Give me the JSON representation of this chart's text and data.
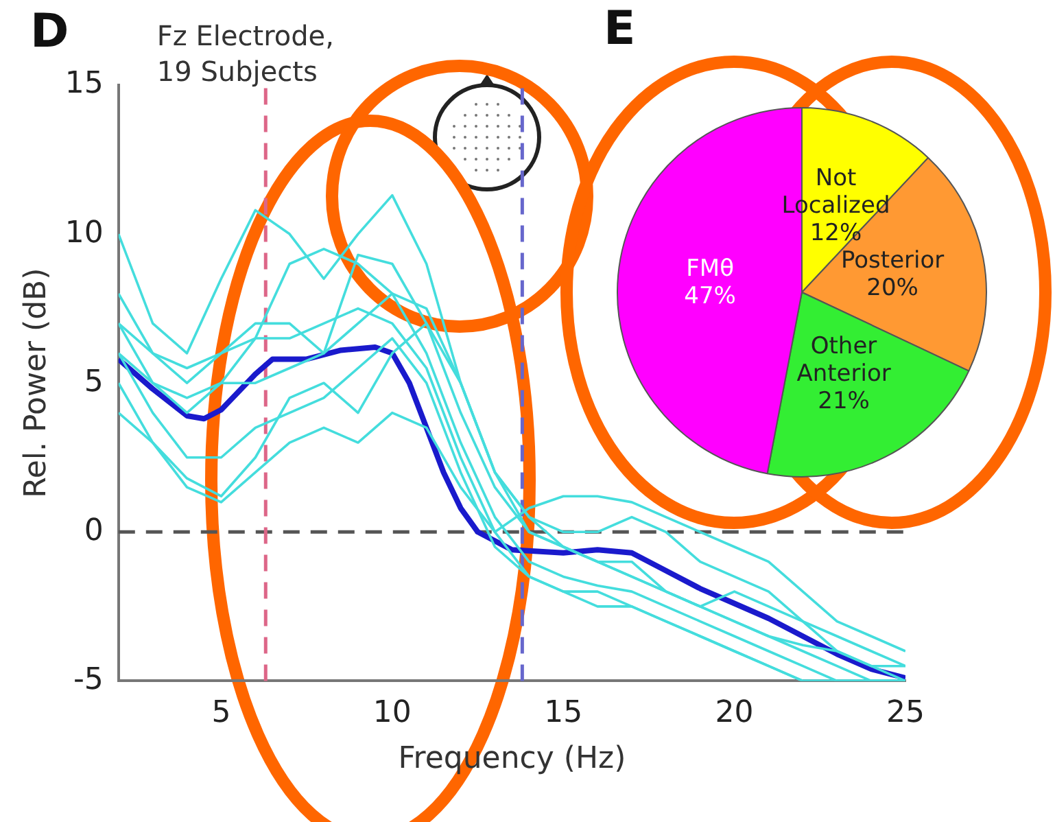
{
  "chart_data": [
    {
      "type": "line",
      "title": "D",
      "xlabel": "Frequency (Hz)",
      "ylabel": "Rel. Power (dB)",
      "annotations": [
        "Fz Electrode, 19 Subjects"
      ],
      "x": [
        2,
        3,
        4,
        5,
        6,
        7,
        8,
        9,
        10,
        11,
        12,
        13,
        14,
        15,
        16,
        17,
        18,
        19,
        20,
        21,
        22,
        23,
        24,
        25
      ],
      "xlim": [
        2,
        25
      ],
      "ylim": [
        -5,
        15
      ],
      "xticks": [
        5,
        10,
        15,
        20,
        25
      ],
      "yticks": [
        -5,
        0,
        5,
        10,
        15
      ],
      "grid": false,
      "legend": false,
      "marker": "none",
      "line_style": "solid",
      "ref_lines": [
        {
          "axis": "y",
          "value": 0,
          "color": "#555555",
          "line_style": "dashed"
        },
        {
          "axis": "x",
          "value": 6.3,
          "color": "#dd6688",
          "line_style": "dashed"
        },
        {
          "axis": "x",
          "value": 13.8,
          "color": "#6666cc",
          "line_style": "dashed"
        }
      ],
      "series": [
        {
          "color": "#44dddd",
          "values": [
            10,
            7,
            6,
            8.5,
            10.8,
            10,
            8.5,
            10,
            11.3,
            9,
            5,
            2,
            0,
            -0.5,
            -1,
            -1.5,
            -2,
            -2.5,
            -3,
            -3.5,
            -4,
            -4.5,
            -5,
            -5
          ]
        },
        {
          "color": "#44dddd",
          "values": [
            7,
            5,
            4,
            5,
            6.5,
            9,
            9.5,
            9,
            8,
            6,
            3,
            0.5,
            -1,
            -1.5,
            -1.8,
            -2,
            -2.5,
            -3,
            -3.5,
            -4,
            -4.5,
            -5,
            -5,
            -5
          ]
        },
        {
          "color": "#44dddd",
          "values": [
            6,
            4,
            2.5,
            2.5,
            3.5,
            4,
            4.5,
            5.5,
            6.5,
            5,
            2,
            -0.5,
            -1.5,
            -2,
            -2.5,
            -2.5,
            -3,
            -3.5,
            -4,
            -4.5,
            -5,
            -5,
            -5,
            -5
          ]
        },
        {
          "color": "#44dddd",
          "values": [
            5,
            3,
            1.5,
            1,
            2,
            3,
            3.5,
            3,
            4,
            3.5,
            1.5,
            0,
            0.8,
            1.2,
            1.2,
            1,
            0.5,
            0,
            -0.5,
            -1,
            -2,
            -3,
            -3.5,
            -4
          ]
        },
        {
          "color": "#44dddd",
          "values": [
            8,
            6,
            5,
            6,
            7,
            7,
            6,
            7,
            8,
            7.5,
            5,
            2,
            0.5,
            0,
            0,
            0.5,
            0,
            -1,
            -1.5,
            -2,
            -3,
            -3.5,
            -4,
            -4.5
          ]
        },
        {
          "color": "#44dddd",
          "values": [
            6,
            5,
            4.5,
            5,
            5,
            5.5,
            6,
            9.3,
            9,
            7,
            4,
            1.5,
            0,
            -0.5,
            -1,
            -1,
            -2,
            -2.5,
            -2,
            -2.5,
            -3,
            -4,
            -4.5,
            -4.5
          ]
        },
        {
          "color": "#44dddd",
          "values": [
            4,
            3,
            1.8,
            1.2,
            2.5,
            4.5,
            5,
            4,
            6,
            7,
            5,
            2,
            0.5,
            -0.5,
            -1,
            -1.5,
            -2,
            -2.5,
            -3,
            -3.5,
            -3.8,
            -4,
            -4.5,
            -5
          ]
        },
        {
          "color": "#44dddd",
          "values": [
            7,
            6,
            5.5,
            6,
            6.5,
            6.5,
            7,
            7.5,
            7,
            5.5,
            2.5,
            0,
            -1.5,
            -2,
            -2,
            -2.5,
            -3,
            -3.5,
            -4,
            -4.5,
            -5,
            -5,
            -5,
            -5
          ]
        },
        {
          "color": "#1a1acc",
          "x": [
            2,
            3,
            4,
            4.5,
            5,
            6,
            6.5,
            7.5,
            8.5,
            9.5,
            10,
            10.5,
            11,
            11.5,
            12,
            12.5,
            13.5,
            15,
            16,
            17,
            18,
            19,
            20,
            21,
            22,
            23,
            24,
            25
          ],
          "values": [
            5.8,
            4.8,
            3.9,
            3.8,
            4.1,
            5.3,
            5.8,
            5.8,
            6.1,
            6.2,
            6,
            5,
            3.5,
            2,
            0.8,
            0,
            -0.6,
            -0.7,
            -0.6,
            -0.7,
            -1.3,
            -1.9,
            -2.4,
            -2.9,
            -3.5,
            -4.1,
            -4.6,
            -4.9
          ]
        }
      ]
    },
    {
      "type": "pie",
      "title": "E",
      "categories": [
        "Not Localized",
        "Posterior",
        "Other Anterior",
        "FMθ"
      ],
      "values": [
        12,
        20,
        21,
        47
      ],
      "value_labels": [
        "12%",
        "20%",
        "21%",
        "47%"
      ],
      "colors": [
        "#ffff00",
        "#ff9933",
        "#33ee33",
        "#ff00ff"
      ],
      "legend": false
    }
  ]
}
